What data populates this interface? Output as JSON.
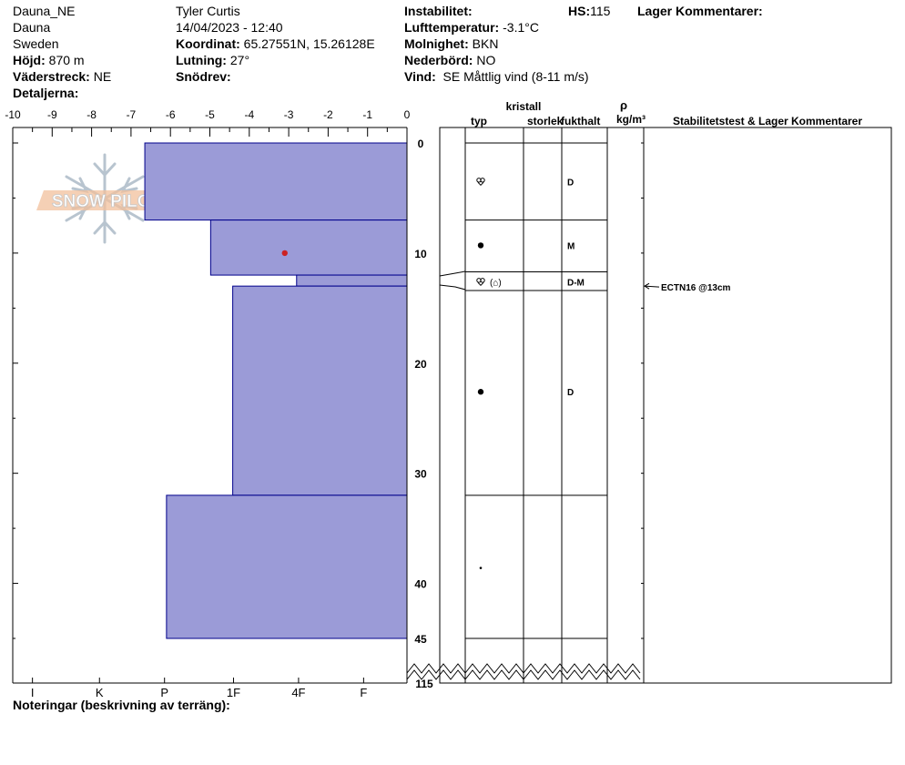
{
  "header": {
    "site": "Dauna_NE",
    "area": "Dauna",
    "country": "Sweden",
    "elevation_label": "Höjd:",
    "elevation_value": "870 m",
    "aspect_label": "Väderstreck:",
    "aspect_value": "NE",
    "details_label": "Detaljerna:",
    "observer": "Tyler Curtis",
    "datetime": "14/04/2023 - 12:40",
    "coord_label": "Koordinat:",
    "coord_value": "65.27551N, 15.26128E",
    "slope_label": "Lutning:",
    "slope_value": "27°",
    "drift_label": "Snödrev:",
    "drift_value": "",
    "instability_label": "Instabilitet:",
    "instability_value": "",
    "airtemp_label": "Lufttemperatur:",
    "airtemp_value": "-3.1°C",
    "sky_label": "Molnighet:",
    "sky_value": "BKN",
    "precip_label": "Nederbörd:",
    "precip_value": "NO",
    "wind_label": "Vind:",
    "wind_value": "SE  Måttlig vind (8-11 m/s)",
    "hs_label": "HS:",
    "hs_value": "115",
    "layer_comments_label": "Lager Kommentarer:"
  },
  "notes_label": "Noteringar (beskrivning av terräng):",
  "logo_text": "SNOW PILOT",
  "columns": {
    "crystal": "kristall",
    "type": "typ",
    "size": "storlek",
    "moisture": "fukthalt",
    "rho": "ρ",
    "density_unit": "kg/m³",
    "stability": "Stabilitetstest & Lager Kommentarer"
  },
  "colors": {
    "bar_fill": "#9b9bd7",
    "bar_stroke": "#00008b",
    "temp_point": "#cc2222"
  },
  "chart_data": {
    "type": "bar",
    "temp_axis": {
      "ticks": [
        -10,
        -9,
        -8,
        -7,
        -6,
        -5,
        -4,
        -3,
        -2,
        -1,
        0
      ],
      "labels": [
        "-10",
        "-9",
        "-8",
        "-7",
        "-6",
        "-5",
        "-4",
        "-3",
        "-2",
        "-1",
        "0"
      ]
    },
    "hardness_axis": {
      "labels": [
        "I",
        "K",
        "P",
        "1F",
        "4F",
        "F"
      ],
      "positions": [
        -9.5,
        -7.8,
        -6.15,
        -4.4,
        -2.75,
        -1.1
      ]
    },
    "depth_axis": {
      "ticks": [
        0,
        10,
        20,
        30,
        40,
        45
      ],
      "labels": [
        "0",
        "10",
        "20",
        "30",
        "40",
        "45"
      ],
      "bottom_label": "115",
      "range": [
        0,
        45
      ]
    },
    "hardness_layers": [
      {
        "top": 0,
        "bottom": 7,
        "x": -6.65
      },
      {
        "top": 7,
        "bottom": 12,
        "x": -4.98
      },
      {
        "top": 12,
        "bottom": 13,
        "x": -2.8
      },
      {
        "top": 13,
        "bottom": 32,
        "x": -4.42
      },
      {
        "top": 32,
        "bottom": 45,
        "x": -6.1
      }
    ],
    "temperature_points": [
      {
        "depth": 10,
        "temp": -3.1
      }
    ],
    "layer_boundaries": [
      0,
      7,
      11.7,
      13.4,
      32,
      45
    ],
    "layers": [
      {
        "depth": 3.5,
        "type": "faceted",
        "moisture": "D"
      },
      {
        "depth": 9.3,
        "type": "rounded",
        "moisture": "M"
      },
      {
        "depth": 12.6,
        "type": "faceted-mixed",
        "moisture": "D-M",
        "secondary": "(⌂)"
      },
      {
        "depth": 22.6,
        "type": "rounded",
        "moisture": "D"
      },
      {
        "depth": 38.6,
        "type": "small",
        "moisture": ""
      }
    ],
    "stability_tests": [
      {
        "depth": 13,
        "label": "ECTN16 @13cm"
      }
    ]
  }
}
